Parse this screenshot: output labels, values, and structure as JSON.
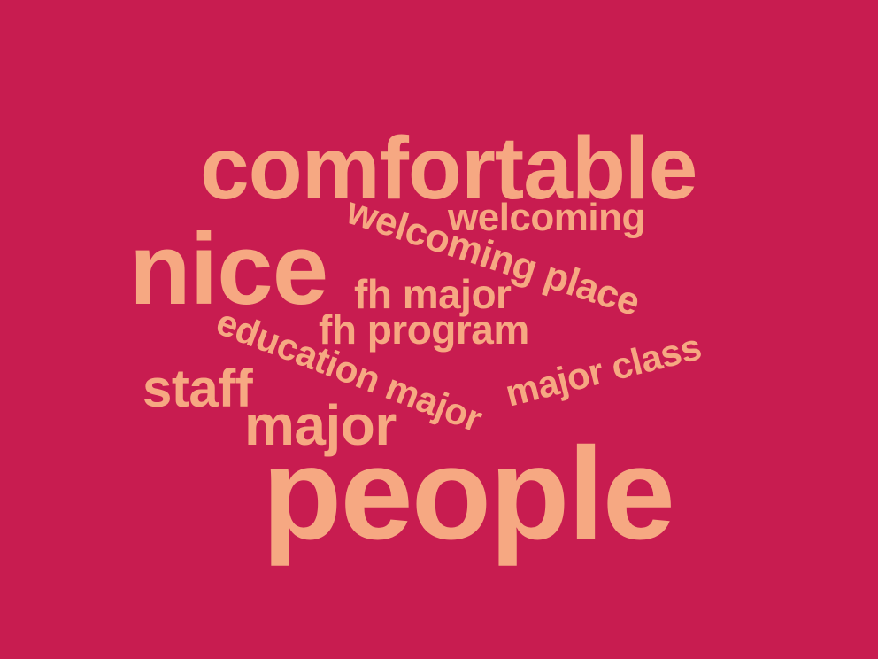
{
  "cloud": {
    "background_color": "#c81c50",
    "word_color": "#f6a882",
    "words": [
      {
        "text": "comfortable"
      },
      {
        "text": "welcoming"
      },
      {
        "text": "welcoming place"
      },
      {
        "text": "nice"
      },
      {
        "text": "fh major"
      },
      {
        "text": "fh program"
      },
      {
        "text": "education major"
      },
      {
        "text": "major class"
      },
      {
        "text": "staff"
      },
      {
        "text": "major"
      },
      {
        "text": "people"
      }
    ]
  }
}
